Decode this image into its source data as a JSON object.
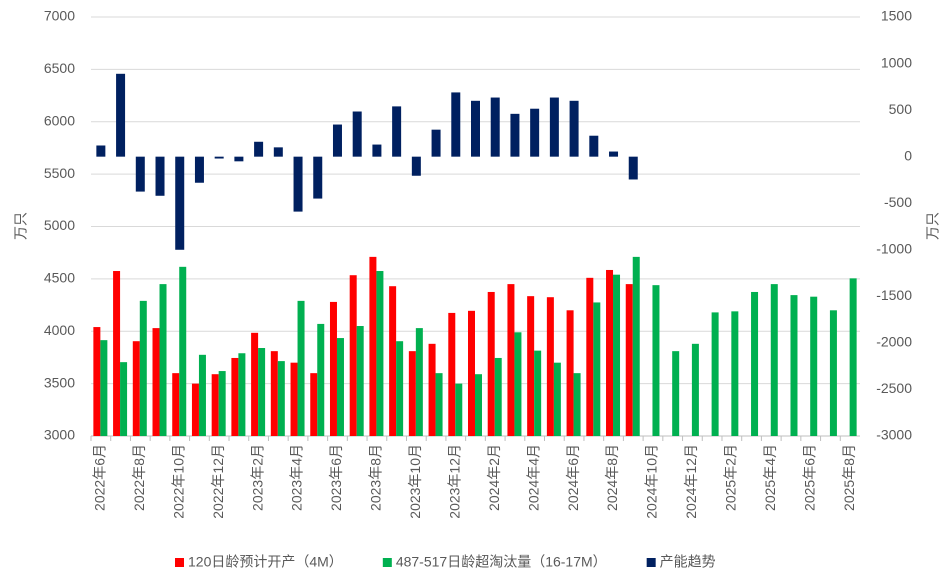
{
  "chart_data": {
    "type": "bar",
    "y_label": "万只",
    "y2_label": "万只",
    "categories": [
      "2022年6月",
      null,
      "2022年8月",
      null,
      "2022年10月",
      null,
      "2022年12月",
      null,
      "2023年2月",
      null,
      "2023年4月",
      null,
      "2023年6月",
      null,
      "2023年8月",
      null,
      "2023年10月",
      null,
      "2023年12月",
      null,
      "2024年2月",
      null,
      "2024年4月",
      null,
      "2024年6月",
      null,
      "2024年8月",
      null,
      "2024年10月",
      null,
      "2024年12月",
      null,
      "2025年2月",
      null,
      "2025年4月",
      null,
      "2025年6月",
      null,
      "2025年8月"
    ],
    "series": [
      {
        "name": "120日龄预计开产（4M）",
        "color": "#ff0000",
        "values": [
          4040,
          4575,
          3905,
          4030,
          3600,
          3500,
          3590,
          3745,
          3985,
          3810,
          3700,
          3600,
          4280,
          4535,
          4710,
          4430,
          3810,
          3880,
          4175,
          4195,
          4375,
          4450,
          4335,
          4325,
          4200,
          4510,
          4585,
          4450,
          null,
          null,
          null,
          null,
          null,
          null,
          null,
          null,
          null,
          null,
          null
        ]
      },
      {
        "name": "487-517日龄超淘汰量（16-17M）",
        "color": "#00b050",
        "values": [
          3915,
          3705,
          4290,
          4450,
          4615,
          3775,
          3620,
          3790,
          3840,
          3715,
          4290,
          4070,
          3935,
          4050,
          4575,
          3905,
          4030,
          3600,
          3500,
          3590,
          3745,
          3990,
          3815,
          3700,
          3600,
          4275,
          4540,
          4710,
          4440,
          3810,
          3880,
          4180,
          4190,
          4375,
          4450,
          4345,
          4330,
          4200,
          4505
        ]
      },
      {
        "name": "产能趋势",
        "color": "#002060",
        "axis": "y2",
        "values": [
          120,
          890,
          -375,
          -420,
          -1000,
          -280,
          -20,
          -50,
          160,
          100,
          -590,
          -450,
          345,
          485,
          130,
          540,
          -205,
          290,
          690,
          600,
          635,
          460,
          515,
          635,
          600,
          225,
          55,
          -245,
          null,
          null,
          null,
          null,
          null,
          null,
          null,
          null,
          null,
          null,
          null
        ]
      }
    ],
    "ylim": [
      3000,
      7000
    ],
    "yticks": [
      3000,
      3500,
      4000,
      4500,
      5000,
      5500,
      6000,
      6500,
      7000
    ],
    "y2lim": [
      -3000,
      1500
    ],
    "y2ticks": [
      -3000,
      -2500,
      -2000,
      -1500,
      -1000,
      -500,
      0,
      500,
      1000,
      1500
    ],
    "grid": true
  }
}
